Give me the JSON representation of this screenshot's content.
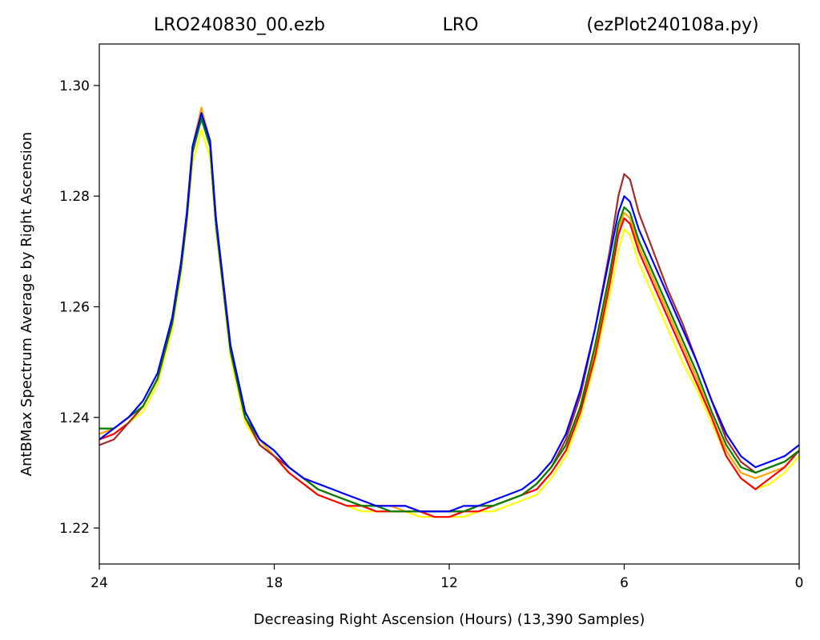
{
  "chart_data": {
    "type": "line",
    "title_left": "LRO240830_00.ezb",
    "title_center": "LRO",
    "title_right": "(ezPlot240108a.py)",
    "xlabel": "Decreasing Right Ascension (Hours) (13,390 Samples)",
    "ylabel": "AntBMax Spectrum Average by Right Ascension",
    "xlim": [
      24,
      0
    ],
    "ylim": [
      1.2135,
      1.3075
    ],
    "x_ticks": [
      {
        "value": 24,
        "label": "24"
      },
      {
        "value": 18,
        "label": "18"
      },
      {
        "value": 12,
        "label": "12"
      },
      {
        "value": 6,
        "label": "6"
      },
      {
        "value": 0,
        "label": "0"
      }
    ],
    "y_ticks": [
      {
        "value": 1.22,
        "label": "1.22"
      },
      {
        "value": 1.24,
        "label": "1.24"
      },
      {
        "value": 1.26,
        "label": "1.26"
      },
      {
        "value": 1.28,
        "label": "1.28"
      },
      {
        "value": 1.3,
        "label": "1.30"
      }
    ],
    "grid": false,
    "x": [
      24,
      23.5,
      23,
      22.5,
      22,
      21.5,
      21.2,
      21,
      20.8,
      20.5,
      20.2,
      20,
      19.5,
      19,
      18.5,
      18,
      17.5,
      17,
      16.5,
      16,
      15.5,
      15,
      14.5,
      14,
      13.5,
      13,
      12.5,
      12,
      11.5,
      11,
      10.5,
      10,
      9.5,
      9,
      8.5,
      8,
      7.5,
      7,
      6.5,
      6.2,
      6,
      5.8,
      5.5,
      5,
      4.5,
      4,
      3.5,
      3,
      2.5,
      2,
      1.5,
      1,
      0.5,
      0
    ],
    "series": [
      {
        "color": "#ffff00",
        "values": [
          1.236,
          1.237,
          1.239,
          1.241,
          1.246,
          1.256,
          1.266,
          1.275,
          1.286,
          1.292,
          1.287,
          1.274,
          1.251,
          1.239,
          1.235,
          1.233,
          1.23,
          1.228,
          1.226,
          1.225,
          1.224,
          1.223,
          1.223,
          1.223,
          1.223,
          1.222,
          1.222,
          1.222,
          1.222,
          1.223,
          1.223,
          1.224,
          1.225,
          1.226,
          1.229,
          1.233,
          1.24,
          1.25,
          1.262,
          1.27,
          1.274,
          1.273,
          1.268,
          1.262,
          1.256,
          1.25,
          1.245,
          1.239,
          1.233,
          1.229,
          1.227,
          1.228,
          1.23,
          1.233
        ]
      },
      {
        "color": "#ffa500",
        "values": [
          1.237,
          1.238,
          1.24,
          1.242,
          1.247,
          1.257,
          1.267,
          1.277,
          1.289,
          1.296,
          1.29,
          1.276,
          1.253,
          1.241,
          1.236,
          1.233,
          1.231,
          1.229,
          1.227,
          1.226,
          1.225,
          1.224,
          1.224,
          1.224,
          1.223,
          1.223,
          1.223,
          1.223,
          1.223,
          1.224,
          1.224,
          1.225,
          1.226,
          1.228,
          1.231,
          1.235,
          1.242,
          1.252,
          1.265,
          1.274,
          1.277,
          1.276,
          1.271,
          1.265,
          1.259,
          1.253,
          1.247,
          1.24,
          1.234,
          1.23,
          1.229,
          1.23,
          1.231,
          1.234
        ]
      },
      {
        "color": "#ff0000",
        "values": [
          1.236,
          1.237,
          1.239,
          1.242,
          1.247,
          1.257,
          1.267,
          1.276,
          1.288,
          1.295,
          1.289,
          1.275,
          1.252,
          1.24,
          1.235,
          1.233,
          1.23,
          1.228,
          1.226,
          1.225,
          1.224,
          1.224,
          1.223,
          1.223,
          1.223,
          1.223,
          1.222,
          1.222,
          1.223,
          1.223,
          1.224,
          1.225,
          1.226,
          1.227,
          1.23,
          1.234,
          1.241,
          1.251,
          1.264,
          1.273,
          1.276,
          1.275,
          1.27,
          1.264,
          1.258,
          1.252,
          1.246,
          1.24,
          1.233,
          1.229,
          1.227,
          1.229,
          1.231,
          1.234
        ]
      },
      {
        "color": "#a52a2a",
        "values": [
          1.235,
          1.236,
          1.239,
          1.242,
          1.247,
          1.257,
          1.267,
          1.276,
          1.288,
          1.294,
          1.289,
          1.275,
          1.252,
          1.24,
          1.235,
          1.233,
          1.231,
          1.229,
          1.227,
          1.226,
          1.225,
          1.224,
          1.224,
          1.224,
          1.224,
          1.223,
          1.223,
          1.223,
          1.223,
          1.224,
          1.224,
          1.225,
          1.226,
          1.228,
          1.231,
          1.236,
          1.244,
          1.256,
          1.27,
          1.28,
          1.284,
          1.283,
          1.277,
          1.27,
          1.263,
          1.257,
          1.25,
          1.243,
          1.236,
          1.232,
          1.23,
          1.231,
          1.232,
          1.234
        ]
      },
      {
        "color": "#008000",
        "values": [
          1.238,
          1.238,
          1.24,
          1.242,
          1.247,
          1.257,
          1.267,
          1.276,
          1.288,
          1.294,
          1.289,
          1.275,
          1.252,
          1.24,
          1.236,
          1.234,
          1.231,
          1.229,
          1.227,
          1.226,
          1.225,
          1.224,
          1.224,
          1.223,
          1.223,
          1.223,
          1.223,
          1.223,
          1.223,
          1.224,
          1.224,
          1.225,
          1.226,
          1.228,
          1.231,
          1.235,
          1.242,
          1.253,
          1.266,
          1.275,
          1.278,
          1.277,
          1.272,
          1.266,
          1.26,
          1.254,
          1.248,
          1.241,
          1.235,
          1.231,
          1.23,
          1.231,
          1.232,
          1.234
        ]
      },
      {
        "color": "#0000ff",
        "values": [
          1.236,
          1.238,
          1.24,
          1.243,
          1.248,
          1.258,
          1.268,
          1.277,
          1.289,
          1.295,
          1.29,
          1.276,
          1.253,
          1.241,
          1.236,
          1.234,
          1.231,
          1.229,
          1.228,
          1.227,
          1.226,
          1.225,
          1.224,
          1.224,
          1.224,
          1.223,
          1.223,
          1.223,
          1.224,
          1.224,
          1.225,
          1.226,
          1.227,
          1.229,
          1.232,
          1.237,
          1.245,
          1.256,
          1.269,
          1.277,
          1.28,
          1.279,
          1.274,
          1.268,
          1.262,
          1.256,
          1.25,
          1.243,
          1.237,
          1.233,
          1.231,
          1.232,
          1.233,
          1.235
        ]
      }
    ]
  }
}
